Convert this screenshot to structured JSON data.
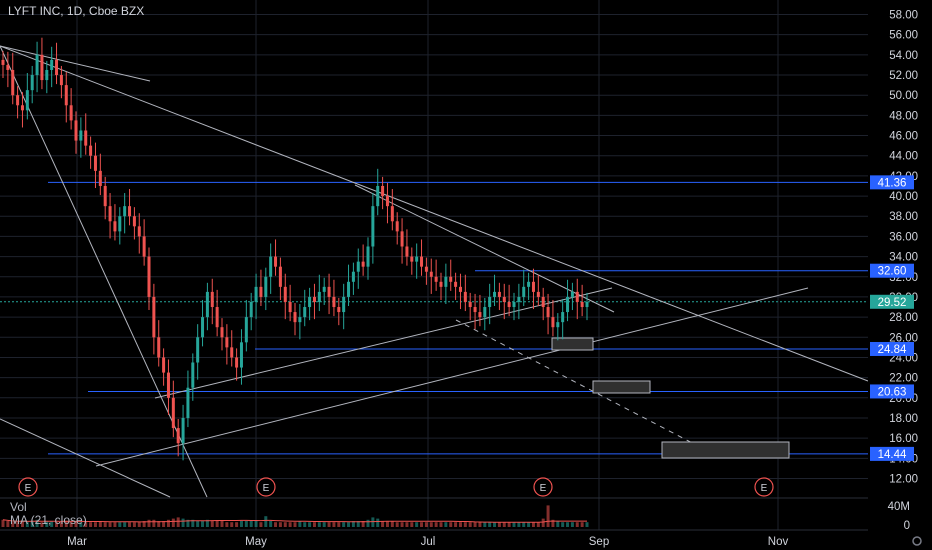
{
  "header": {
    "title": "LYFT INC, 1D, Cboe BZX"
  },
  "volume": {
    "label": "Vol",
    "ma_label": "MA (21, close)"
  },
  "colors": {
    "up": "#26a69a",
    "down": "#ef5350",
    "hline": "#2962ff",
    "trend": "#b2b5be",
    "last_price_bg": "#26a69a",
    "label_bg": "#2962ff",
    "earnings": "#ef5350"
  },
  "chart_data": {
    "type": "candlestick",
    "title": "LYFT INC, 1D, Cboe BZX",
    "ylim": [
      12,
      58
    ],
    "y_ticks": [
      "58.00",
      "56.00",
      "54.00",
      "52.00",
      "50.00",
      "48.00",
      "46.00",
      "44.00",
      "42.00",
      "40.00",
      "38.00",
      "36.00",
      "34.00",
      "32.00",
      "30.00",
      "28.00",
      "26.00",
      "24.00",
      "22.00",
      "20.00",
      "18.00",
      "16.00",
      "14.00",
      "12.00"
    ],
    "x_ticks": [
      "Mar",
      "May",
      "Jul",
      "Sep",
      "Nov"
    ],
    "price_labels": [
      {
        "text": "41.36",
        "value": 41.36,
        "kind": "level"
      },
      {
        "text": "32.60",
        "value": 32.6,
        "kind": "level"
      },
      {
        "text": "29.52",
        "value": 29.52,
        "kind": "last"
      },
      {
        "text": "24.84",
        "value": 24.84,
        "kind": "level"
      },
      {
        "text": "20.63",
        "value": 20.63,
        "kind": "level"
      },
      {
        "text": "14.44",
        "value": 14.44,
        "kind": "level"
      }
    ],
    "volume_axis": [
      "40M",
      "0"
    ],
    "earnings_marker": "E",
    "series": [
      {
        "name": "",
        "points": [
          53.0,
          52.5,
          50.0,
          49.0,
          48.5,
          50.5,
          52.0,
          54.0,
          51.5,
          52.5,
          53.5,
          52.0,
          51.0,
          49.0,
          47.5,
          45.5,
          46.5,
          45.0,
          44.0,
          42.5,
          41.0,
          39.0,
          37.5,
          36.5,
          38.0,
          39.0,
          38.0,
          37.0,
          36.0,
          34.0,
          30.0,
          26.0,
          24.0,
          22.5,
          20.0,
          17.0,
          15.5,
          18.0,
          21.0,
          23.5,
          26.0,
          28.0,
          30.5,
          29.0,
          27.0,
          26.0,
          25.0,
          24.0,
          23.0,
          25.5,
          28.0,
          29.5,
          31.0,
          30.0,
          32.0,
          34.0,
          33.0,
          31.0,
          29.5,
          28.5,
          27.5,
          28.0,
          29.0,
          30.0,
          29.5,
          30.5,
          31.0,
          30.0,
          29.0,
          28.5,
          30.0,
          31.5,
          32.5,
          33.5,
          33.0,
          35.0,
          39.0,
          41.0,
          40.0,
          39.0,
          37.5,
          36.5,
          35.0,
          34.0,
          33.5,
          34.0,
          33.0,
          32.5,
          32.0,
          31.5,
          31.0,
          32.0,
          31.5,
          31.0,
          30.5,
          29.5,
          29.0,
          28.5,
          28.0,
          29.0,
          30.0,
          30.5,
          30.0,
          29.5,
          29.0,
          29.5,
          30.0,
          31.0,
          31.5,
          30.5,
          30.0,
          29.0,
          28.0,
          27.0,
          27.5,
          28.5,
          30.0,
          30.5,
          29.5,
          29.0,
          29.5
        ],
        "volume": [
          6,
          5,
          4,
          4,
          5,
          4,
          5,
          6,
          4,
          5,
          5,
          4,
          4,
          5,
          4,
          5,
          4,
          4,
          4,
          4,
          5,
          4,
          4,
          4,
          4,
          4,
          4,
          4,
          4,
          5,
          6,
          6,
          5,
          5,
          6,
          7,
          8,
          7,
          6,
          6,
          5,
          5,
          6,
          5,
          5,
          5,
          4,
          4,
          4,
          5,
          5,
          5,
          5,
          4,
          9,
          5,
          4,
          4,
          4,
          4,
          4,
          5,
          4,
          4,
          4,
          4,
          4,
          4,
          4,
          4,
          4,
          4,
          5,
          5,
          5,
          6,
          8,
          7,
          5,
          5,
          5,
          4,
          4,
          4,
          4,
          4,
          4,
          4,
          4,
          4,
          4,
          4,
          4,
          4,
          4,
          4,
          4,
          4,
          4,
          4,
          4,
          4,
          4,
          4,
          4,
          4,
          4,
          4,
          4,
          4,
          4,
          7,
          18,
          6,
          5,
          4,
          4,
          4,
          4,
          4,
          4
        ]
      }
    ]
  }
}
